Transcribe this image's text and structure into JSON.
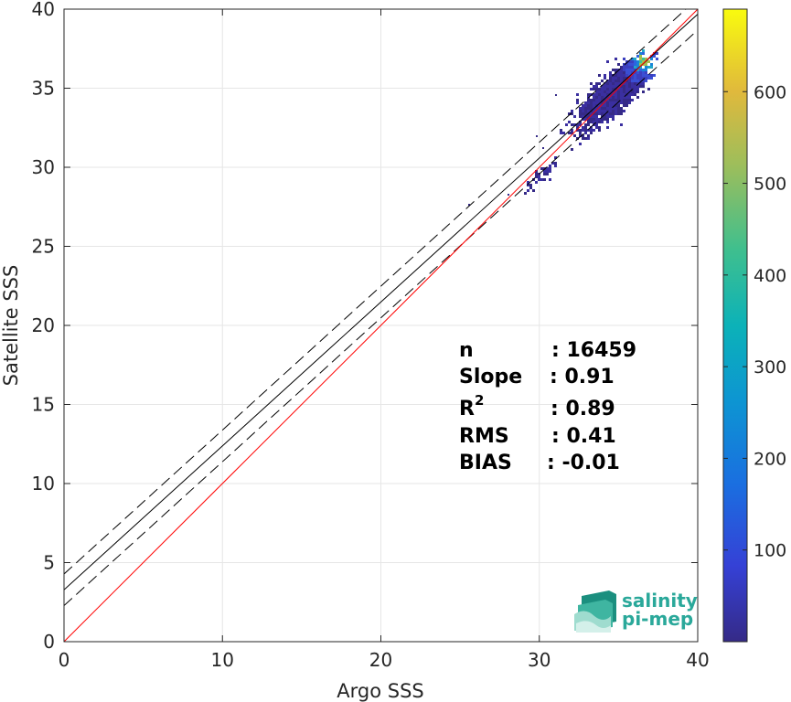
{
  "chart_data": {
    "type": "scatter",
    "subtype": "density-heatmap",
    "xlabel": "Argo SSS",
    "ylabel": "Satellite SSS",
    "xlim": [
      0,
      40
    ],
    "ylim": [
      0,
      40
    ],
    "xticks": [
      "0",
      "10",
      "20",
      "30",
      "40"
    ],
    "yticks": [
      "0",
      "5",
      "10",
      "15",
      "20",
      "25",
      "30",
      "35",
      "40"
    ],
    "grid": true,
    "lines": {
      "identity": {
        "slope": 1,
        "intercept": 0,
        "color": "#ff0000"
      },
      "fit": {
        "slope": 0.91,
        "intercept": 3.28,
        "color": "#000000"
      },
      "fit_upper": {
        "slope": 0.91,
        "intercept": 4.28,
        "style": "dashed"
      },
      "fit_lower": {
        "slope": 0.91,
        "intercept": 2.28,
        "style": "dashed"
      }
    },
    "density_clusters": [
      {
        "x": [
          30.5,
          37.5
        ],
        "y": [
          31,
          37.5
        ],
        "peak": [
          36.5,
          36.8
        ],
        "max_count": 690
      },
      {
        "x": [
          29,
          31
        ],
        "y": [
          28.5,
          30.5
        ],
        "max_count": 10
      }
    ],
    "colorbar": {
      "range": [
        0,
        690
      ],
      "ticks": [
        "100",
        "200",
        "300",
        "400",
        "500",
        "600"
      ],
      "colormap": "parula"
    },
    "stats": [
      {
        "label": "n",
        "value": ": 16459"
      },
      {
        "label": "Slope",
        "value": ": 0.91"
      },
      {
        "label": "R",
        "sup": "2",
        "value": ": 0.89"
      },
      {
        "label": "RMS",
        "value": ": 0.41"
      },
      {
        "label": "BIAS",
        "value": ": -0.01"
      }
    ]
  },
  "logo": {
    "line1": "salinity",
    "line2": "pi-mep"
  }
}
